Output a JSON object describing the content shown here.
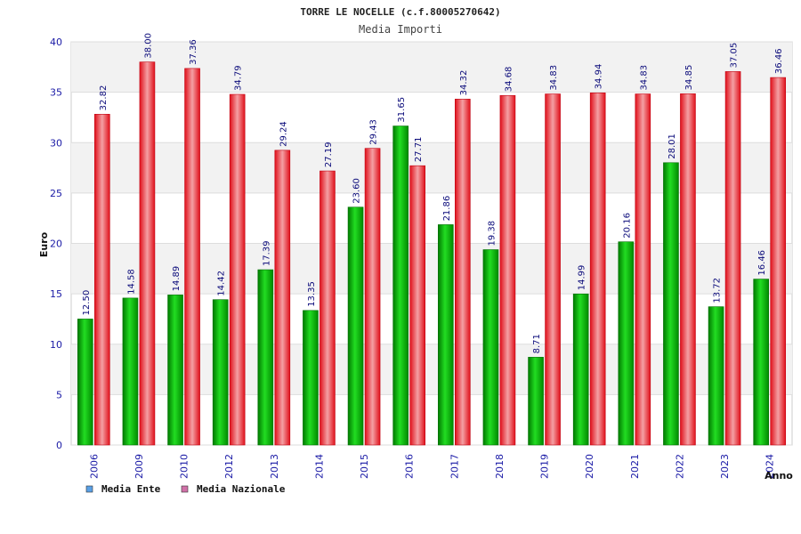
{
  "chart_data": {
    "type": "bar",
    "title": "TORRE LE NOCELLE (c.f.80005270642)",
    "subtitle": "Media Importi",
    "xlabel": "Anno",
    "ylabel": "Euro",
    "ylim": [
      0,
      40
    ],
    "yticks": [
      0,
      5,
      10,
      15,
      20,
      25,
      30,
      35,
      40
    ],
    "categories": [
      "2006",
      "2009",
      "2010",
      "2012",
      "2013",
      "2014",
      "2015",
      "2016",
      "2017",
      "2018",
      "2019",
      "2020",
      "2021",
      "2022",
      "2023",
      "2024"
    ],
    "series": [
      {
        "name": "Media Ente",
        "color": "#00b000",
        "legend_color": "#5aa0e6",
        "values": [
          12.5,
          14.58,
          14.89,
          14.42,
          17.39,
          13.35,
          23.6,
          31.65,
          21.86,
          19.38,
          8.71,
          14.99,
          20.16,
          28.01,
          13.72,
          16.46
        ],
        "labels": [
          "12.50",
          "14.58",
          "14.89",
          "14.42",
          "17.39",
          "13.35",
          "23.60",
          "31.65",
          "21.86",
          "19.38",
          "8.71",
          "14.99",
          "20.16",
          "28.01",
          "13.72",
          "16.46"
        ]
      },
      {
        "name": "Media Nazionale",
        "color": "#e8202a",
        "legend_color": "#d070a8",
        "values": [
          32.82,
          38.0,
          37.36,
          34.79,
          29.24,
          27.19,
          29.43,
          27.71,
          34.32,
          34.68,
          34.83,
          34.94,
          34.83,
          34.85,
          37.05,
          36.46
        ],
        "labels": [
          "32.82",
          "38.00",
          "37.36",
          "34.79",
          "29.24",
          "27.19",
          "29.43",
          "27.71",
          "34.32",
          "34.68",
          "34.83",
          "34.94",
          "34.83",
          "34.85",
          "37.05",
          "36.46"
        ]
      }
    ],
    "grid": true,
    "legend": "bottom-left"
  }
}
